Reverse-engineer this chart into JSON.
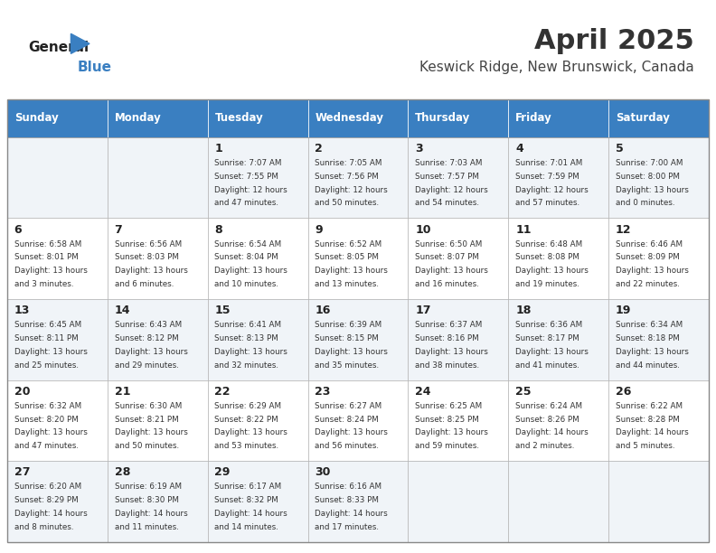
{
  "title": "April 2025",
  "subtitle": "Keswick Ridge, New Brunswick, Canada",
  "header_color": "#3a7fc1",
  "header_text_color": "#ffffff",
  "border_color": "#cccccc",
  "days_of_week": [
    "Sunday",
    "Monday",
    "Tuesday",
    "Wednesday",
    "Thursday",
    "Friday",
    "Saturday"
  ],
  "weeks": [
    [
      {
        "day": "",
        "sunrise": "",
        "sunset": "",
        "daylight": ""
      },
      {
        "day": "",
        "sunrise": "",
        "sunset": "",
        "daylight": ""
      },
      {
        "day": "1",
        "sunrise": "Sunrise: 7:07 AM",
        "sunset": "Sunset: 7:55 PM",
        "daylight": "Daylight: 12 hours and 47 minutes."
      },
      {
        "day": "2",
        "sunrise": "Sunrise: 7:05 AM",
        "sunset": "Sunset: 7:56 PM",
        "daylight": "Daylight: 12 hours and 50 minutes."
      },
      {
        "day": "3",
        "sunrise": "Sunrise: 7:03 AM",
        "sunset": "Sunset: 7:57 PM",
        "daylight": "Daylight: 12 hours and 54 minutes."
      },
      {
        "day": "4",
        "sunrise": "Sunrise: 7:01 AM",
        "sunset": "Sunset: 7:59 PM",
        "daylight": "Daylight: 12 hours and 57 minutes."
      },
      {
        "day": "5",
        "sunrise": "Sunrise: 7:00 AM",
        "sunset": "Sunset: 8:00 PM",
        "daylight": "Daylight: 13 hours and 0 minutes."
      }
    ],
    [
      {
        "day": "6",
        "sunrise": "Sunrise: 6:58 AM",
        "sunset": "Sunset: 8:01 PM",
        "daylight": "Daylight: 13 hours and 3 minutes."
      },
      {
        "day": "7",
        "sunrise": "Sunrise: 6:56 AM",
        "sunset": "Sunset: 8:03 PM",
        "daylight": "Daylight: 13 hours and 6 minutes."
      },
      {
        "day": "8",
        "sunrise": "Sunrise: 6:54 AM",
        "sunset": "Sunset: 8:04 PM",
        "daylight": "Daylight: 13 hours and 10 minutes."
      },
      {
        "day": "9",
        "sunrise": "Sunrise: 6:52 AM",
        "sunset": "Sunset: 8:05 PM",
        "daylight": "Daylight: 13 hours and 13 minutes."
      },
      {
        "day": "10",
        "sunrise": "Sunrise: 6:50 AM",
        "sunset": "Sunset: 8:07 PM",
        "daylight": "Daylight: 13 hours and 16 minutes."
      },
      {
        "day": "11",
        "sunrise": "Sunrise: 6:48 AM",
        "sunset": "Sunset: 8:08 PM",
        "daylight": "Daylight: 13 hours and 19 minutes."
      },
      {
        "day": "12",
        "sunrise": "Sunrise: 6:46 AM",
        "sunset": "Sunset: 8:09 PM",
        "daylight": "Daylight: 13 hours and 22 minutes."
      }
    ],
    [
      {
        "day": "13",
        "sunrise": "Sunrise: 6:45 AM",
        "sunset": "Sunset: 8:11 PM",
        "daylight": "Daylight: 13 hours and 25 minutes."
      },
      {
        "day": "14",
        "sunrise": "Sunrise: 6:43 AM",
        "sunset": "Sunset: 8:12 PM",
        "daylight": "Daylight: 13 hours and 29 minutes."
      },
      {
        "day": "15",
        "sunrise": "Sunrise: 6:41 AM",
        "sunset": "Sunset: 8:13 PM",
        "daylight": "Daylight: 13 hours and 32 minutes."
      },
      {
        "day": "16",
        "sunrise": "Sunrise: 6:39 AM",
        "sunset": "Sunset: 8:15 PM",
        "daylight": "Daylight: 13 hours and 35 minutes."
      },
      {
        "day": "17",
        "sunrise": "Sunrise: 6:37 AM",
        "sunset": "Sunset: 8:16 PM",
        "daylight": "Daylight: 13 hours and 38 minutes."
      },
      {
        "day": "18",
        "sunrise": "Sunrise: 6:36 AM",
        "sunset": "Sunset: 8:17 PM",
        "daylight": "Daylight: 13 hours and 41 minutes."
      },
      {
        "day": "19",
        "sunrise": "Sunrise: 6:34 AM",
        "sunset": "Sunset: 8:18 PM",
        "daylight": "Daylight: 13 hours and 44 minutes."
      }
    ],
    [
      {
        "day": "20",
        "sunrise": "Sunrise: 6:32 AM",
        "sunset": "Sunset: 8:20 PM",
        "daylight": "Daylight: 13 hours and 47 minutes."
      },
      {
        "day": "21",
        "sunrise": "Sunrise: 6:30 AM",
        "sunset": "Sunset: 8:21 PM",
        "daylight": "Daylight: 13 hours and 50 minutes."
      },
      {
        "day": "22",
        "sunrise": "Sunrise: 6:29 AM",
        "sunset": "Sunset: 8:22 PM",
        "daylight": "Daylight: 13 hours and 53 minutes."
      },
      {
        "day": "23",
        "sunrise": "Sunrise: 6:27 AM",
        "sunset": "Sunset: 8:24 PM",
        "daylight": "Daylight: 13 hours and 56 minutes."
      },
      {
        "day": "24",
        "sunrise": "Sunrise: 6:25 AM",
        "sunset": "Sunset: 8:25 PM",
        "daylight": "Daylight: 13 hours and 59 minutes."
      },
      {
        "day": "25",
        "sunrise": "Sunrise: 6:24 AM",
        "sunset": "Sunset: 8:26 PM",
        "daylight": "Daylight: 14 hours and 2 minutes."
      },
      {
        "day": "26",
        "sunrise": "Sunrise: 6:22 AM",
        "sunset": "Sunset: 8:28 PM",
        "daylight": "Daylight: 14 hours and 5 minutes."
      }
    ],
    [
      {
        "day": "27",
        "sunrise": "Sunrise: 6:20 AM",
        "sunset": "Sunset: 8:29 PM",
        "daylight": "Daylight: 14 hours and 8 minutes."
      },
      {
        "day": "28",
        "sunrise": "Sunrise: 6:19 AM",
        "sunset": "Sunset: 8:30 PM",
        "daylight": "Daylight: 14 hours and 11 minutes."
      },
      {
        "day": "29",
        "sunrise": "Sunrise: 6:17 AM",
        "sunset": "Sunset: 8:32 PM",
        "daylight": "Daylight: 14 hours and 14 minutes."
      },
      {
        "day": "30",
        "sunrise": "Sunrise: 6:16 AM",
        "sunset": "Sunset: 8:33 PM",
        "daylight": "Daylight: 14 hours and 17 minutes."
      },
      {
        "day": "",
        "sunrise": "",
        "sunset": "",
        "daylight": ""
      },
      {
        "day": "",
        "sunrise": "",
        "sunset": "",
        "daylight": ""
      },
      {
        "day": "",
        "sunrise": "",
        "sunset": "",
        "daylight": ""
      }
    ]
  ],
  "logo_general_color": "#222222",
  "logo_blue_color": "#3a7fc1",
  "title_color": "#333333",
  "subtitle_color": "#444444",
  "cell_bg_even": "#f0f4f8",
  "cell_bg_odd": "#ffffff",
  "cell_border_color": "#aaaaaa",
  "day_num_color": "#222222",
  "cell_text_color": "#333333"
}
